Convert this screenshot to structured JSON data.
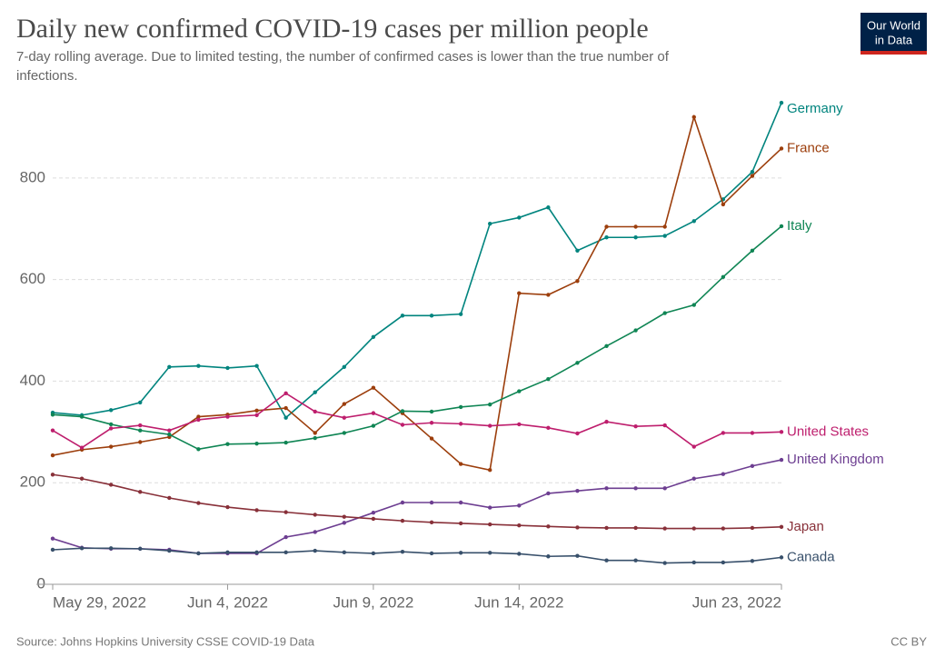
{
  "logo": [
    "Our World",
    "in Data"
  ],
  "source": "Source: Johns Hopkins University CSSE COVID-19 Data",
  "license": "CC BY",
  "chart_data": {
    "type": "line",
    "title": "Daily new confirmed COVID-19 cases per million people",
    "subtitle": [
      "7-day rolling average. Due to limited testing, the number of confirmed cases is lower than the true number of",
      "infections."
    ],
    "x": [
      "2022-05-29",
      "2022-05-30",
      "2022-05-31",
      "2022-06-01",
      "2022-06-02",
      "2022-06-03",
      "2022-06-04",
      "2022-06-05",
      "2022-06-06",
      "2022-06-07",
      "2022-06-08",
      "2022-06-09",
      "2022-06-10",
      "2022-06-11",
      "2022-06-12",
      "2022-06-13",
      "2022-06-14",
      "2022-06-15",
      "2022-06-16",
      "2022-06-17",
      "2022-06-18",
      "2022-06-19",
      "2022-06-20",
      "2022-06-21",
      "2022-06-22",
      "2022-06-23"
    ],
    "xlim": [
      "2022-05-29",
      "2022-06-23"
    ],
    "xticks": [
      {
        "value": "2022-05-29",
        "label": "May 29, 2022"
      },
      {
        "value": "2022-06-04",
        "label": "Jun 4, 2022"
      },
      {
        "value": "2022-06-09",
        "label": "Jun 9, 2022"
      },
      {
        "value": "2022-06-14",
        "label": "Jun 14, 2022"
      },
      {
        "value": "2022-06-23",
        "label": "Jun 23, 2022"
      }
    ],
    "ylim": [
      0,
      950
    ],
    "yticks": [
      0,
      200,
      400,
      600,
      800
    ],
    "grid": true,
    "series": [
      {
        "name": "Germany",
        "color": "#00847e",
        "values": [
          338,
          333,
          343,
          358,
          428,
          430,
          426,
          430,
          328,
          378,
          428,
          487,
          529,
          529,
          532,
          710,
          722,
          742,
          657,
          683,
          683,
          686,
          715,
          758,
          812,
          948
        ]
      },
      {
        "name": "France",
        "color": "#9c3e0c",
        "values": [
          254,
          265,
          271,
          280,
          290,
          330,
          334,
          342,
          347,
          298,
          355,
          387,
          337,
          287,
          237,
          225,
          573,
          570,
          597,
          704,
          704,
          704,
          920,
          748,
          804,
          858
        ]
      },
      {
        "name": "Italy",
        "color": "#0f8554",
        "values": [
          334,
          330,
          315,
          303,
          295,
          266,
          276,
          277,
          279,
          288,
          298,
          312,
          341,
          340,
          349,
          354,
          380,
          404,
          436,
          469,
          500,
          534,
          550,
          605,
          657,
          705
        ]
      },
      {
        "name": "United States",
        "color": "#be1e6d",
        "values": [
          303,
          269,
          307,
          313,
          303,
          324,
          330,
          333,
          376,
          340,
          328,
          337,
          314,
          318,
          316,
          312,
          315,
          308,
          297,
          320,
          311,
          313,
          271,
          298,
          298,
          300
        ]
      },
      {
        "name": "United Kingdom",
        "color": "#6d3e91",
        "values": [
          90,
          72,
          70,
          70,
          68,
          61,
          61,
          61,
          93,
          103,
          121,
          141,
          161,
          161,
          161,
          151,
          155,
          179,
          184,
          189,
          189,
          189,
          208,
          217,
          233,
          245
        ]
      },
      {
        "name": "Japan",
        "color": "#883039",
        "values": [
          216,
          208,
          196,
          182,
          170,
          160,
          152,
          146,
          142,
          137,
          133,
          129,
          125,
          122,
          120,
          118,
          116,
          114,
          112,
          111,
          111,
          110,
          110,
          110,
          111,
          113
        ]
      },
      {
        "name": "Canada",
        "color": "#38506b",
        "values": [
          68,
          71,
          71,
          70,
          66,
          61,
          63,
          63,
          63,
          66,
          63,
          61,
          64,
          61,
          62,
          62,
          60,
          55,
          56,
          47,
          47,
          42,
          43,
          43,
          46,
          53
        ]
      }
    ]
  }
}
